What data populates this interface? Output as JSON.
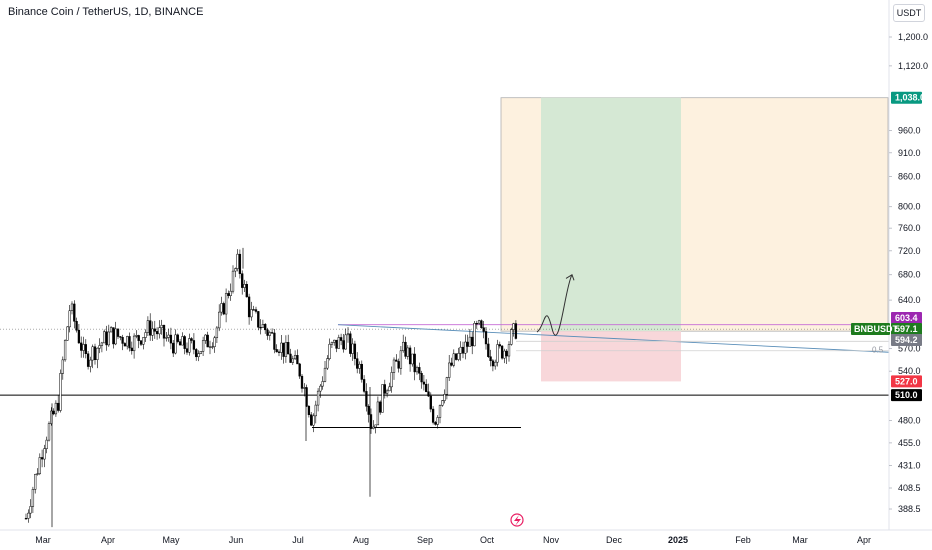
{
  "header": {
    "title": "Binance Coin / TetherUS, 1D, BINANCE",
    "currency": "USDT"
  },
  "chart_data": {
    "type": "candlestick",
    "title": "Binance Coin / TetherUS, 1D, BINANCE",
    "y_scale": "log",
    "ylim": [
      370,
      1370
    ],
    "x_tick_labels": [
      "Mar",
      "Apr",
      "May",
      "Jun",
      "Jul",
      "Aug",
      "Sep",
      "Oct",
      "Nov",
      "Dec",
      "2025",
      "Feb",
      "Mar",
      "Apr"
    ],
    "y_tick_labels": [
      {
        "label": "1,200.0",
        "value": 1200
      },
      {
        "label": "1,120.0",
        "value": 1120
      },
      {
        "label": "960.0",
        "value": 960
      },
      {
        "label": "910.0",
        "value": 910
      },
      {
        "label": "860.0",
        "value": 860
      },
      {
        "label": "800.0",
        "value": 800
      },
      {
        "label": "760.0",
        "value": 760
      },
      {
        "label": "720.0",
        "value": 720
      },
      {
        "label": "680.0",
        "value": 680
      },
      {
        "label": "640.0",
        "value": 640
      },
      {
        "label": "570.0",
        "value": 570
      },
      {
        "label": "540.0",
        "value": 540
      },
      {
        "label": "480.0",
        "value": 480
      },
      {
        "label": "455.0",
        "value": 455
      },
      {
        "label": "431.0",
        "value": 431
      },
      {
        "label": "408.5",
        "value": 408.5
      },
      {
        "label": "388.5",
        "value": 388.5
      }
    ],
    "price_tags": [
      {
        "label": "1,038.0",
        "value": 1038,
        "color": "#089981"
      },
      {
        "label": "603.4",
        "value": 603.4,
        "color": "#9c27b0"
      },
      {
        "label": "597.1",
        "value": 597.1,
        "color": "#1e7b1e"
      },
      {
        "label": "594.2",
        "value": 594.2,
        "color": "#787b86"
      },
      {
        "label": "527.0",
        "value": 527,
        "color": "#f23645"
      },
      {
        "label": "510.0",
        "value": 510,
        "color": "#000000"
      }
    ],
    "symbol_tag": "BNBUSDT",
    "fib_label": "0.5",
    "last_price": 597.1,
    "trade_setup": {
      "entry": 594.2,
      "target": 1038,
      "stop": 527
    },
    "horizontal_levels": [
      510,
      472
    ],
    "grid": false
  }
}
